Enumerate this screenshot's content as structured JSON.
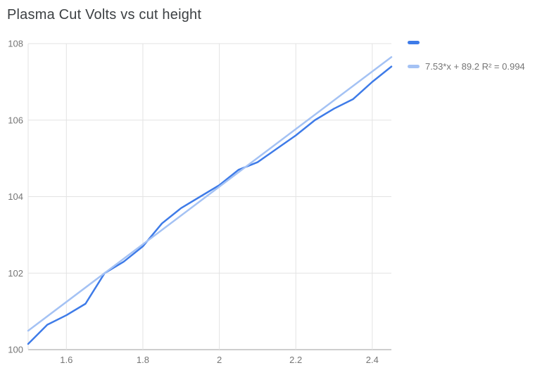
{
  "title": "Plasma Cut Volts vs cut height",
  "legend": {
    "series_label": "",
    "trendline_label": "7.53*x + 89.2 R² = 0.994"
  },
  "colors": {
    "series": "#3e7be8",
    "trendline": "#a4c2f4",
    "grid": "#e3e3e3",
    "axis_line": "#9e9e9e",
    "tick_text": "#757575",
    "title_text": "#3c4043"
  },
  "chart_data": {
    "type": "line",
    "title": "Plasma Cut Volts vs cut height",
    "xlabel": "",
    "ylabel": "",
    "xlim": [
      1.5,
      2.45
    ],
    "ylim": [
      100,
      108
    ],
    "x_ticks": [
      1.6,
      1.8,
      2,
      2.2,
      2.4
    ],
    "y_ticks": [
      100,
      102,
      104,
      106,
      108
    ],
    "grid": true,
    "legend_position": "right",
    "x": [
      1.5,
      1.55,
      1.6,
      1.65,
      1.7,
      1.75,
      1.8,
      1.85,
      1.9,
      1.95,
      2.0,
      2.05,
      2.1,
      2.15,
      2.2,
      2.25,
      2.3,
      2.35,
      2.4,
      2.45
    ],
    "series": [
      {
        "name": "",
        "values": [
          100.15,
          100.65,
          100.9,
          101.2,
          102.0,
          102.3,
          102.7,
          103.3,
          103.7,
          104.0,
          104.3,
          104.7,
          104.9,
          105.25,
          105.6,
          106.0,
          106.3,
          106.55,
          107.0,
          107.4
        ]
      }
    ],
    "trendline": {
      "label": "7.53*x + 89.2 R² = 0.994",
      "slope": 7.53,
      "intercept": 89.2,
      "r_squared": 0.994
    }
  }
}
